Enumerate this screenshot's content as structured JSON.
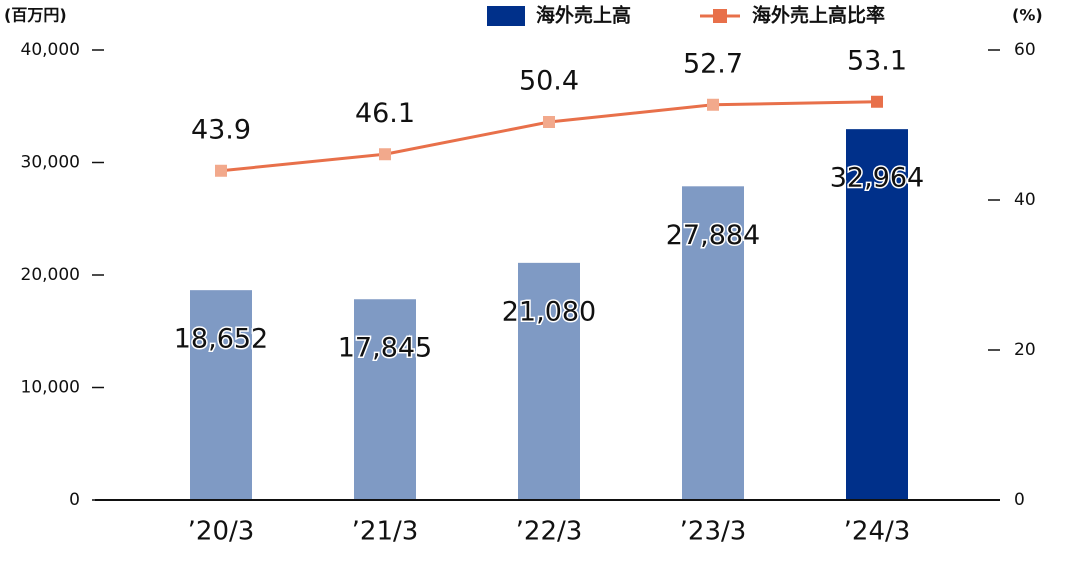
{
  "chart_data": {
    "type": "bar_line",
    "y_unit": "(百万円)",
    "y2_unit": "(%)",
    "categories": [
      "’20/3",
      "’21/3",
      "’22/3",
      "’23/3",
      "’24/3"
    ],
    "series": [
      {
        "name": "海外売上高",
        "type": "bar",
        "color": "#00308a",
        "colors": [
          "#7f9ac4",
          "#7f9ac4",
          "#7f9ac4",
          "#7f9ac4",
          "#00308a"
        ],
        "values": [
          18652,
          17845,
          21080,
          27884,
          32964
        ],
        "value_labels": [
          "18,652",
          "17,845",
          "21,080",
          "27,884",
          "32,964"
        ],
        "label_colors": [
          "#111111",
          "#111111",
          "#111111",
          "#111111",
          "#00308a"
        ]
      },
      {
        "name": "海外売上高比率",
        "type": "line",
        "axis": "y2",
        "color": "#e8704a",
        "marker_colors": [
          "#f2a98c",
          "#f2a98c",
          "#f2a98c",
          "#f2a98c",
          "#e8704a"
        ],
        "values": [
          43.9,
          46.1,
          50.4,
          52.7,
          53.1
        ],
        "label_colors": [
          "#111111",
          "#111111",
          "#111111",
          "#111111",
          "#e8704a"
        ]
      }
    ],
    "ylim": [
      0,
      40000
    ],
    "yticks": [
      0,
      {
        "value": 10000,
        "label": "10,000"
      },
      {
        "value": 20000,
        "label": "20,000"
      },
      {
        "value": 30000,
        "label": "30,000"
      },
      {
        "value": 40000,
        "label": "40,000"
      }
    ],
    "y2lim": [
      0,
      60
    ],
    "y2ticks": [
      0,
      20,
      40,
      60
    ]
  }
}
